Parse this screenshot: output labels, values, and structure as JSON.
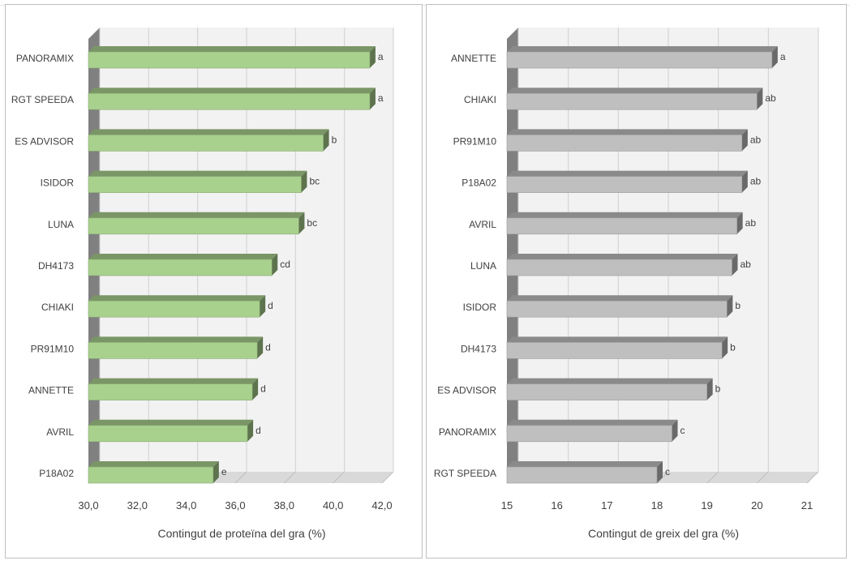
{
  "chart_data": [
    {
      "type": "bar",
      "orientation": "horizontal",
      "style": "3d",
      "title": "",
      "xlabel": "Contingut de proteïna del gra (%)",
      "ylabel": "",
      "xlim": [
        30,
        42
      ],
      "ticks": [
        "30,0",
        "32,0",
        "34,0",
        "36,0",
        "38,0",
        "40,0",
        "42,0"
      ],
      "tick_values": [
        30,
        32,
        34,
        36,
        38,
        40,
        42
      ],
      "grid": true,
      "bar_color": "#a9d18e",
      "categories": [
        "PANORAMIX",
        "RGT SPEEDA",
        "ES ADVISOR",
        "ISIDOR",
        "LUNA",
        "DH4173",
        "CHIAKI",
        "PR91M10",
        "ANNETTE",
        "AVRIL",
        "P18A02"
      ],
      "values": [
        41.5,
        41.5,
        39.6,
        38.7,
        38.6,
        37.5,
        37.0,
        36.9,
        36.7,
        36.5,
        35.1
      ],
      "letters": [
        "a",
        "a",
        "b",
        "bc",
        "bc",
        "cd",
        "d",
        "d",
        "d",
        "d",
        "e"
      ]
    },
    {
      "type": "bar",
      "orientation": "horizontal",
      "style": "3d",
      "title": "",
      "xlabel": "Contingut de greix del gra (%)",
      "ylabel": "",
      "xlim": [
        15,
        21
      ],
      "ticks": [
        "15",
        "16",
        "17",
        "18",
        "19",
        "20",
        "21"
      ],
      "tick_values": [
        15,
        16,
        17,
        18,
        19,
        20,
        21
      ],
      "grid": true,
      "bar_color": "#bfbfbf",
      "categories": [
        "ANNETTE",
        "CHIAKI",
        "PR91M10",
        "P18A02",
        "AVRIL",
        "LUNA",
        "ISIDOR",
        "DH4173",
        "ES ADVISOR",
        "PANORAMIX",
        "RGT SPEEDA"
      ],
      "values": [
        20.3,
        20.0,
        19.7,
        19.7,
        19.6,
        19.5,
        19.4,
        19.3,
        19.0,
        18.3,
        18.0
      ],
      "letters": [
        "a",
        "ab",
        "ab",
        "ab",
        "ab",
        "ab",
        "b",
        "b",
        "b",
        "c",
        "c"
      ]
    }
  ]
}
